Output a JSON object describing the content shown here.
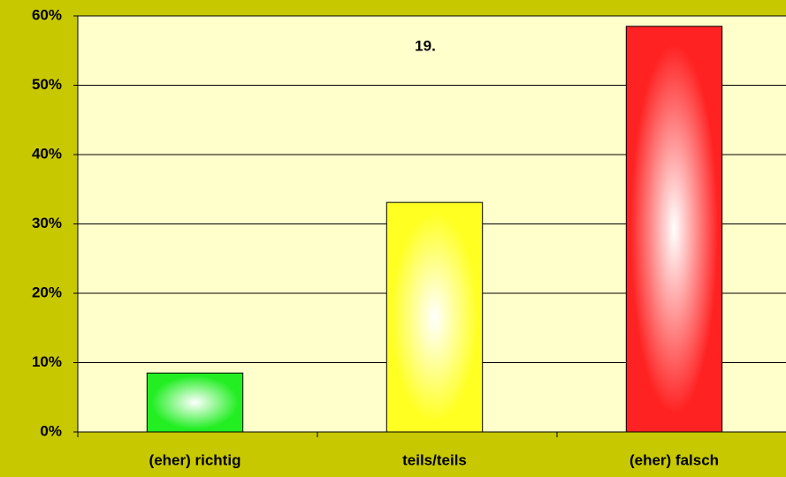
{
  "chart_data": {
    "type": "bar",
    "title": "19.",
    "categories": [
      "(eher) richtig",
      "teils/teils",
      "(eher) falsch"
    ],
    "values": [
      8.5,
      33.1,
      58.5
    ],
    "colors": [
      "#22ee22",
      "#ffff22",
      "#ff2222"
    ],
    "ylim": [
      0,
      60
    ],
    "yticks": [
      {
        "value": 0,
        "label": "0%"
      },
      {
        "value": 10,
        "label": "10%"
      },
      {
        "value": 20,
        "label": "20%"
      },
      {
        "value": 30,
        "label": "30%"
      },
      {
        "value": 40,
        "label": "40%"
      },
      {
        "value": 50,
        "label": "50%"
      },
      {
        "value": 60,
        "label": "60%"
      }
    ],
    "grid": true
  }
}
